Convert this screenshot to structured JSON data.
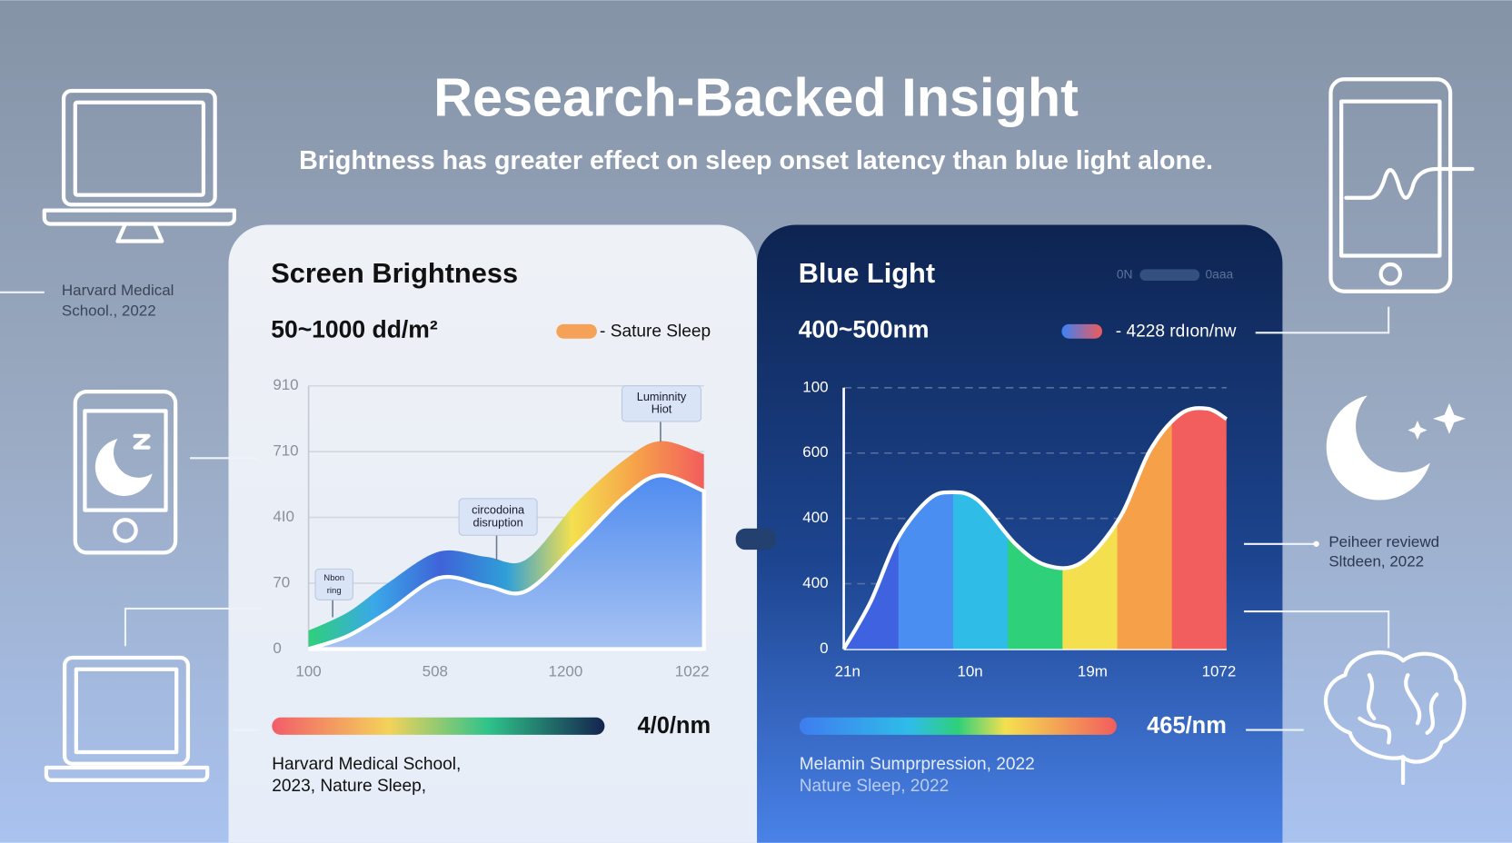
{
  "header": {
    "title": "Research-Backed Insight",
    "subtitle": "Brightness has greater effect on sleep onset latency than blue light alone."
  },
  "side_notes": [
    [
      "Harvard Medical",
      "School., 2022"
    ],
    [
      "Peiheer reviewd",
      "Sltdeen, 2022"
    ]
  ],
  "chart_data": [
    {
      "type": "area",
      "title": "Screen Brightness",
      "subtitle": "50~1000 dd/m²",
      "legend": {
        "label": "- Sature Sleep",
        "color": "#f6a158"
      },
      "x": [
        0,
        10,
        20,
        33,
        45,
        55,
        68,
        80,
        89,
        100
      ],
      "series": [
        {
          "color": "band",
          "values": [
            7,
            14,
            25,
            37,
            35,
            34,
            56,
            72,
            79,
            74
          ]
        },
        {
          "color": "#5b93ee",
          "values": [
            0,
            5,
            14,
            27,
            24,
            22,
            40,
            58,
            66,
            60
          ]
        }
      ],
      "band_colors": [
        "#2fd07a",
        "#3aa8e8",
        "#3f63d8",
        "#2f9fd8",
        "#f4e04f",
        "#f6a04a",
        "#f25d5d"
      ],
      "xlim": [
        0,
        100
      ],
      "xticks": [
        {
          "value": 0,
          "label": "100"
        },
        {
          "value": 32,
          "label": "508"
        },
        {
          "value": 65,
          "label": "1200"
        },
        {
          "value": 97,
          "label": "1022"
        }
      ],
      "ylim": [
        0,
        100
      ],
      "yticks": [
        0,
        {
          "value": 25,
          "label": "70"
        },
        {
          "value": 50,
          "label": "4I0"
        },
        {
          "value": 75,
          "label": "710"
        },
        {
          "value": 100,
          "label": "910"
        }
      ],
      "grid": true,
      "grid_style": "solid",
      "annotations": [
        [
          "Luminnity",
          "Hiot"
        ],
        [
          "circodoina",
          "disruption"
        ],
        [
          "Nbon",
          "ring"
        ]
      ],
      "scale_label": "4/0/nm",
      "sources": [
        "Harvard Medical School,",
        "2023, Nature Sleep,"
      ]
    },
    {
      "type": "spectrum",
      "title": "Blue Light",
      "subtitle": "400~500nm",
      "legend": {
        "label": "- 4228 rdıon/nw",
        "colors": [
          "#3b82f6",
          "#f05a5a"
        ]
      },
      "toggle": [
        "0N",
        "0aaa"
      ],
      "x": [
        0,
        7,
        14,
        22,
        28,
        35,
        45,
        53,
        62,
        72,
        80,
        88,
        95,
        100
      ],
      "series": [
        {
          "color": "#ffffff",
          "values": [
            0,
            18,
            42,
            57,
            60,
            57,
            40,
            32,
            33,
            50,
            76,
            90,
            92,
            88
          ]
        }
      ],
      "band_colors": [
        "#3f63e0",
        "#4a8ef2",
        "#2fbde8",
        "#2fd07a",
        "#f4e04f",
        "#f6a04a",
        "#f25d5d"
      ],
      "xlim": [
        0,
        100
      ],
      "xticks": [
        {
          "value": 1,
          "label": "21n"
        },
        {
          "value": 33,
          "label": "10n"
        },
        {
          "value": 65,
          "label": "19m"
        },
        {
          "value": 98,
          "label": "1072"
        }
      ],
      "ylim": [
        0,
        100
      ],
      "yticks": [
        0,
        {
          "value": 25,
          "label": "400"
        },
        {
          "value": 50,
          "label": "400"
        },
        {
          "value": 75,
          "label": "600"
        },
        100
      ],
      "grid": true,
      "grid_style": "dashed",
      "scale_label": "465/nm",
      "sources": [
        "Melamin Sumprpression, 2022",
        "Nature Sleep, 2022"
      ]
    }
  ]
}
